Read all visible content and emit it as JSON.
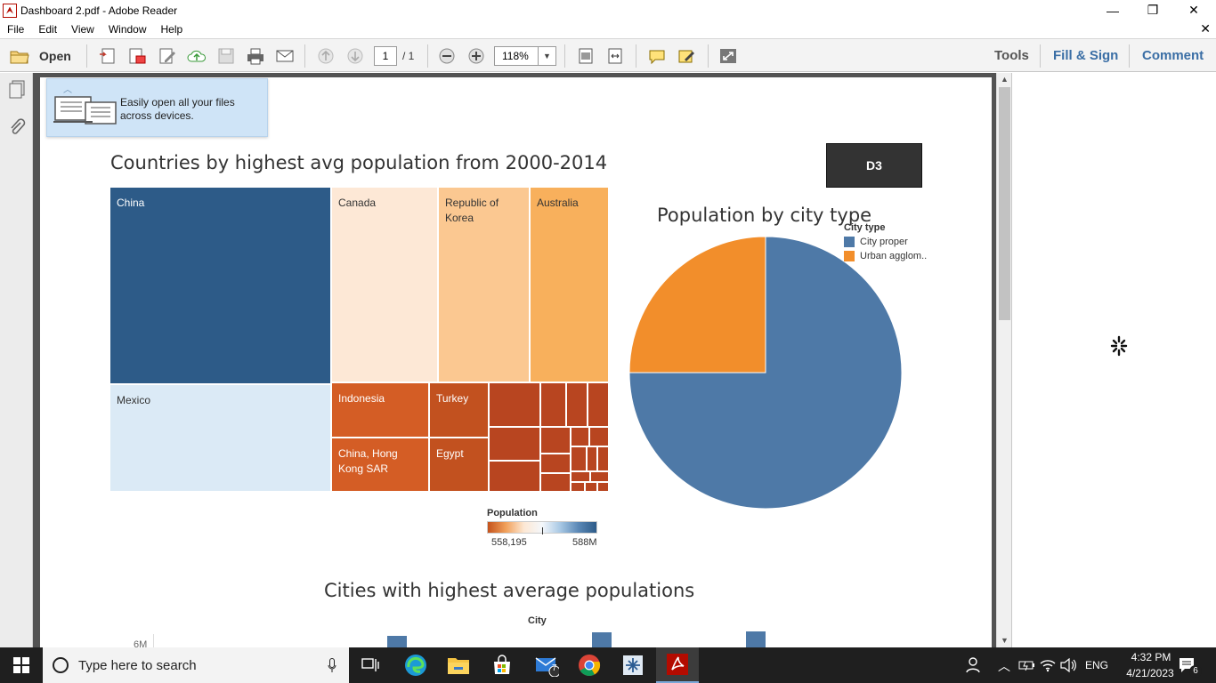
{
  "window": {
    "title": "Dashboard 2.pdf - Adobe Reader",
    "minimize": "—",
    "restore": "❐",
    "close": "✕"
  },
  "menu": {
    "items": [
      "File",
      "Edit",
      "View",
      "Window",
      "Help"
    ],
    "close_glyph": "✕"
  },
  "toolbar": {
    "open_label": "Open",
    "page_current": "1",
    "page_total": "/ 1",
    "zoom": "118%",
    "right_tabs": [
      "Tools",
      "Fill & Sign",
      "Comment"
    ]
  },
  "tip": {
    "text": "Easily open all your files across devices."
  },
  "treemap": {
    "title": "Countries by highest avg population from 2000-2014",
    "cells": [
      {
        "label": "China",
        "color": "#2d5b88",
        "text_color": "#ffffff"
      },
      {
        "label": "Canada",
        "color": "#fde8d6",
        "text_color": "#333333"
      },
      {
        "label": "Republic of Korea",
        "color": "#fbc891",
        "text_color": "#333333"
      },
      {
        "label": "Australia",
        "color": "#f8b05c",
        "text_color": "#333333"
      },
      {
        "label": "Mexico",
        "color": "#dbeaf6",
        "text_color": "#333333"
      },
      {
        "label": "Indonesia",
        "color": "#d45d25",
        "text_color": "#ffffff"
      },
      {
        "label": "Turkey",
        "color": "#c2511f",
        "text_color": "#ffffff"
      },
      {
        "label": "China, Hong Kong SAR",
        "color": "#d45d25",
        "text_color": "#ffffff"
      },
      {
        "label": "Egypt",
        "color": "#c2511f",
        "text_color": "#ffffff"
      }
    ],
    "small_cell_color": "#b84520"
  },
  "badge": {
    "label": "D3"
  },
  "pie": {
    "title": "Population by city type",
    "legend_title": "City type",
    "slices": [
      {
        "name": "City proper",
        "value": 75,
        "color": "#4e79a7"
      },
      {
        "name": "Urban agglom..",
        "value": 25,
        "color": "#f28e2b"
      }
    ]
  },
  "population_legend": {
    "title": "Population",
    "min": "558,195",
    "max": "588M"
  },
  "bar_section": {
    "title": "Cities with highest average populations",
    "axis_label": "City",
    "y_tick_partial": "6M"
  },
  "taskbar": {
    "search_placeholder": "Type here to search",
    "mail_badge": "7",
    "lang": "ENG",
    "time": "4:32 PM",
    "date": "4/21/2023",
    "notif_count": "6"
  }
}
